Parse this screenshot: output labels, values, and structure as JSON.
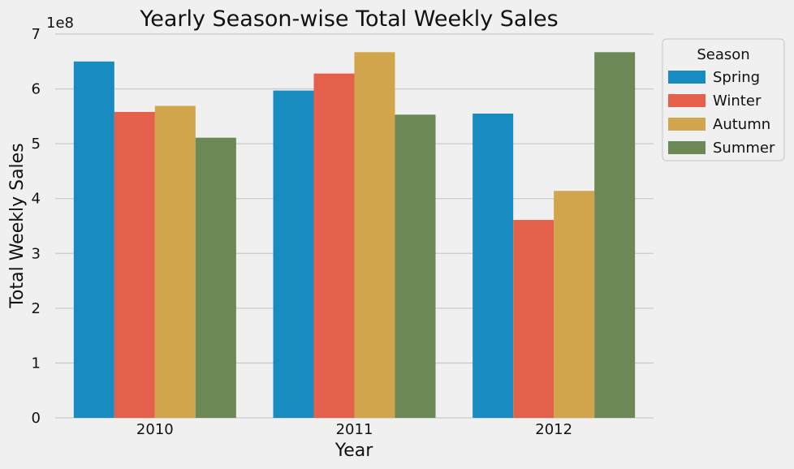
{
  "chart_data": {
    "type": "bar",
    "title": "Yearly Season-wise Total Weekly Sales",
    "xlabel": "Year",
    "ylabel": "Total Weekly Sales",
    "scale_label": "1e8",
    "categories": [
      "2010",
      "2011",
      "2012"
    ],
    "ylim": [
      0,
      7
    ],
    "yticks": [
      "0",
      "1",
      "2",
      "3",
      "4",
      "5",
      "6",
      "7"
    ],
    "grid": true,
    "legend": {
      "title": "Season",
      "position": "outside-right-top"
    },
    "series": [
      {
        "name": "Spring",
        "color": "#188bc0",
        "values": [
          6.5,
          5.97,
          5.55
        ]
      },
      {
        "name": "Winter",
        "color": "#e5604a",
        "values": [
          5.58,
          6.28,
          3.61
        ]
      },
      {
        "name": "Autumn",
        "color": "#d0a54c",
        "values": [
          5.69,
          6.67,
          4.14
        ]
      },
      {
        "name": "Summer",
        "color": "#6b8856",
        "values": [
          5.11,
          5.53,
          6.67
        ]
      }
    ]
  }
}
